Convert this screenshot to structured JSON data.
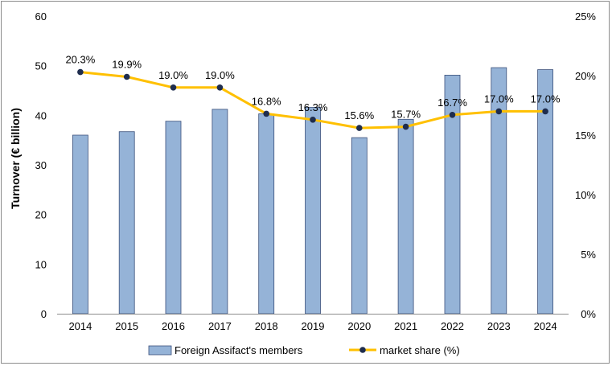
{
  "chart_data": {
    "type": "bar",
    "categories": [
      "2014",
      "2015",
      "2016",
      "2017",
      "2018",
      "2019",
      "2020",
      "2021",
      "2022",
      "2023",
      "2024"
    ],
    "series": [
      {
        "name": "Foreign Assifact's members",
        "type": "bar",
        "axis": "left",
        "values": [
          36.0,
          36.7,
          38.8,
          41.2,
          40.3,
          41.6,
          35.5,
          39.2,
          48.1,
          49.6,
          49.2
        ],
        "color": "#95b3d7"
      },
      {
        "name": "market share (%)",
        "type": "line",
        "axis": "right",
        "values": [
          20.3,
          19.9,
          19.0,
          19.0,
          16.8,
          16.3,
          15.6,
          15.7,
          16.7,
          17.0,
          17.0
        ],
        "labels": [
          "20.3%",
          "19.9%",
          "19.0%",
          "19.0%",
          "16.8%",
          "16.3%",
          "15.6%",
          "15.7%",
          "16.7%",
          "17.0%",
          "17.0%"
        ],
        "color": "#ffc000",
        "marker_color": "#1f2d4e"
      }
    ],
    "ylabel": "Turnover (€ billion)",
    "ylim": [
      0,
      60
    ],
    "y_ticks": [
      "0",
      "10",
      "20",
      "30",
      "40",
      "50",
      "60"
    ],
    "y2lim": [
      0,
      25
    ],
    "y2_ticks": [
      "0%",
      "5%",
      "10%",
      "15%",
      "20%",
      "25%"
    ],
    "grid": false,
    "legend_position": "bottom"
  }
}
